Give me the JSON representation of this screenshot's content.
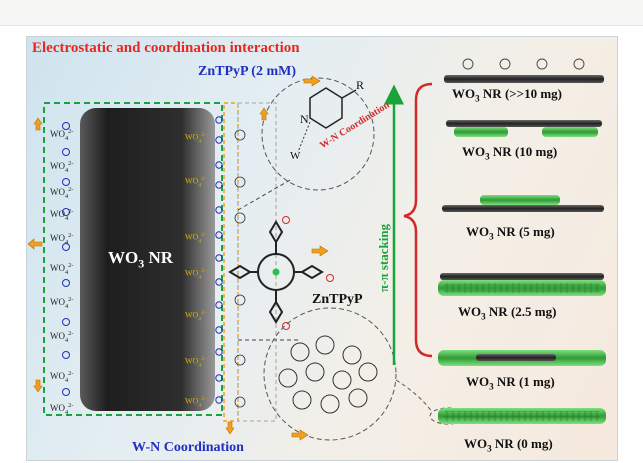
{
  "panel": {
    "title": "Electrostatic and coordination interaction",
    "concentration_label": "ZnTPyP (2 mM)",
    "nanorod_label": {
      "base": "WO",
      "sub": "3",
      "tail": " NR"
    },
    "ion": {
      "base": "WO",
      "sub": "4",
      "sup": "2-"
    },
    "wn_coordination_inset": "W-N Coordination",
    "wn_coordination_bottom": "W-N Coordination",
    "pyridine_R": "R",
    "pyridine_N": "N",
    "pyridine_W": "W",
    "porphyrin_label": "ZnTPyP",
    "stacking_label": "π-π stacking"
  },
  "series": [
    {
      "base": "WO",
      "sub": "3",
      "tail": " NR (>>10 mg)"
    },
    {
      "base": "WO",
      "sub": "3",
      "tail": " NR (10 mg)"
    },
    {
      "base": "WO",
      "sub": "3",
      "tail": " NR (5 mg)"
    },
    {
      "base": "WO",
      "sub": "3",
      "tail": " NR (2.5 mg)"
    },
    {
      "base": "WO",
      "sub": "3",
      "tail": " NR (1 mg)"
    },
    {
      "base": "WO",
      "sub": "3",
      "tail": " NR (0 mg)"
    }
  ],
  "colors": {
    "title": "#e8281f",
    "blue_text": "#1f2fbf",
    "green": "#1aa33a",
    "red_coord": "#d22a2a",
    "arrow_orange": "#f0a020",
    "ion_yellow": "#e0b000",
    "rod_dark": "#2b2b2b"
  }
}
